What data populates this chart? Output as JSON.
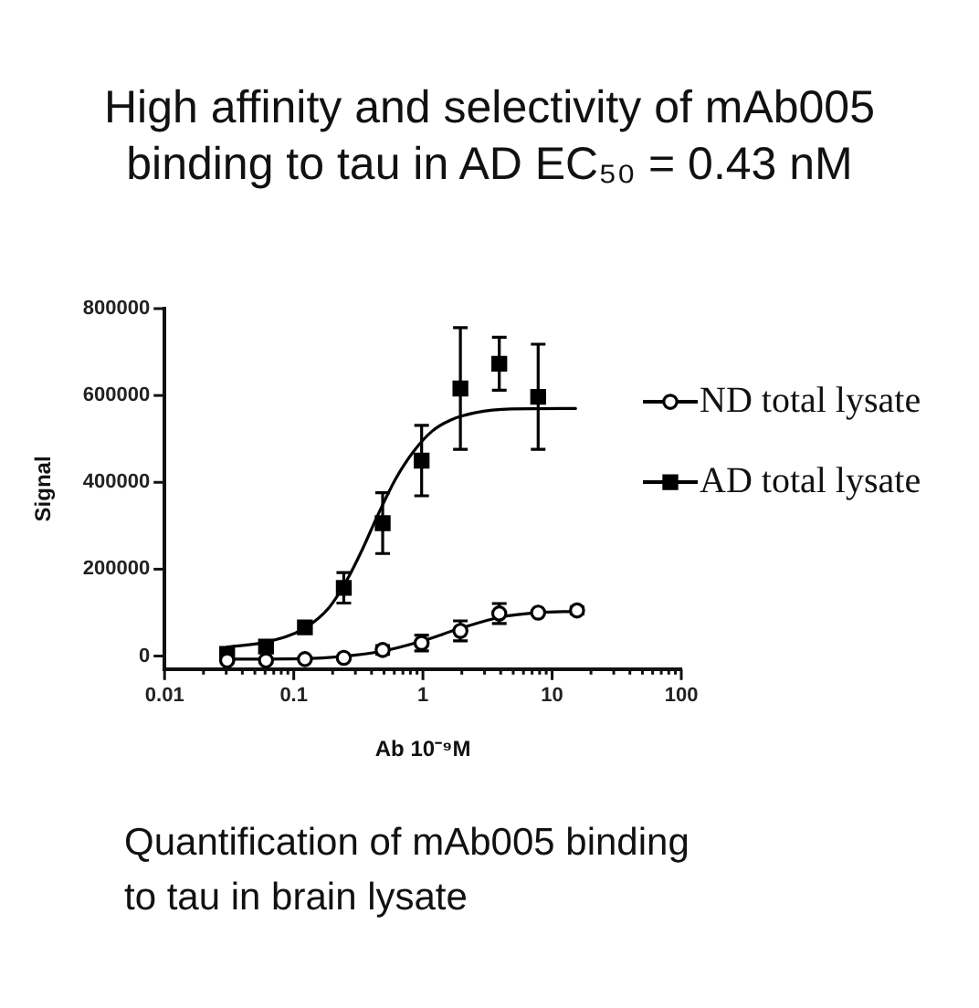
{
  "chart_data": {
    "type": "scatter",
    "title": "High affinity and selectivity of mAb005 binding to tau in AD EC₅₀ = 0.43 nM",
    "xlabel": "Ab 10⁻⁹M",
    "ylabel": "Signal",
    "annotations": [
      "Quantification of mAb005 binding to tau in brain lysate"
    ],
    "log": "x",
    "xlim": [
      0.01,
      100
    ],
    "xticks": [
      0.01,
      {
        "value": 0.02,
        "label": null
      },
      {
        "value": 0.03,
        "label": null
      },
      {
        "value": 0.04,
        "label": null
      },
      {
        "value": 0.05,
        "label": null
      },
      {
        "value": 0.06,
        "label": null
      },
      {
        "value": 0.07,
        "label": null
      },
      {
        "value": 0.08,
        "label": null
      },
      {
        "value": 0.09,
        "label": null
      },
      0.1,
      {
        "value": 0.2,
        "label": null
      },
      {
        "value": 0.3,
        "label": null
      },
      {
        "value": 0.4,
        "label": null
      },
      {
        "value": 0.5,
        "label": null
      },
      {
        "value": 0.6,
        "label": null
      },
      {
        "value": 0.7,
        "label": null
      },
      {
        "value": 0.8,
        "label": null
      },
      {
        "value": 0.9,
        "label": null
      },
      1,
      {
        "value": 2,
        "label": null
      },
      {
        "value": 3,
        "label": null
      },
      {
        "value": 4,
        "label": null
      },
      {
        "value": 5,
        "label": null
      },
      {
        "value": 6,
        "label": null
      },
      {
        "value": 7,
        "label": null
      },
      {
        "value": 8,
        "label": null
      },
      {
        "value": 9,
        "label": null
      },
      10,
      {
        "value": 20,
        "label": null
      },
      {
        "value": 30,
        "label": null
      },
      {
        "value": 40,
        "label": null
      },
      {
        "value": 50,
        "label": null
      },
      {
        "value": 60,
        "label": null
      },
      {
        "value": 70,
        "label": null
      },
      {
        "value": 80,
        "label": null
      },
      {
        "value": 90,
        "label": null
      },
      100
    ],
    "ylim": [
      -30000,
      800000
    ],
    "yticks": [
      0,
      200000,
      400000,
      600000,
      800000
    ],
    "grid": false,
    "legend": "right",
    "series": [
      {
        "name": "ND total lysate",
        "marker": "circle",
        "color": "#000000",
        "x": [
          0.0305,
          0.061,
          0.122,
          0.244,
          0.488,
          0.977,
          1.95,
          3.9,
          7.8,
          15.6
        ],
        "values": [
          -10000,
          -10000,
          -7000,
          -4000,
          14000,
          30000,
          58000,
          98000,
          100000,
          105000
        ],
        "errors": [
          null,
          null,
          null,
          null,
          10000,
          18000,
          23000,
          23000,
          null,
          8000
        ]
      },
      {
        "name": "AD total lysate",
        "marker": "square",
        "color": "#000000",
        "x": [
          0.0305,
          0.061,
          0.122,
          0.244,
          0.488,
          0.977,
          1.95,
          3.9,
          7.8
        ],
        "values": [
          5000,
          22000,
          66000,
          157000,
          306000,
          450000,
          616000,
          673000,
          597000
        ],
        "errors": [
          null,
          null,
          null,
          35000,
          70000,
          81000,
          140000,
          61000,
          121000
        ]
      },
      {
        "type": "line",
        "marker": "none",
        "color": "#000000",
        "x": [
          0.0305,
          0.121,
          0.237,
          0.484,
          0.948,
          1.96,
          3.88,
          7.85,
          15.2
        ],
        "values": [
          -7000,
          -6000,
          -1000,
          11000,
          33000,
          64000,
          89000,
          100000,
          103000
        ]
      },
      {
        "type": "line",
        "marker": "none",
        "color": "#000000",
        "x": [
          0.0305,
          0.063,
          0.121,
          0.187,
          0.258,
          0.339,
          0.445,
          0.615,
          0.851,
          1.18,
          1.63,
          2.52,
          4.83,
          15.2
        ],
        "values": [
          21000,
          33000,
          64000,
          111000,
          175000,
          245000,
          323000,
          408000,
          472000,
          518000,
          543000,
          560000,
          569000,
          570000
        ]
      }
    ]
  }
}
